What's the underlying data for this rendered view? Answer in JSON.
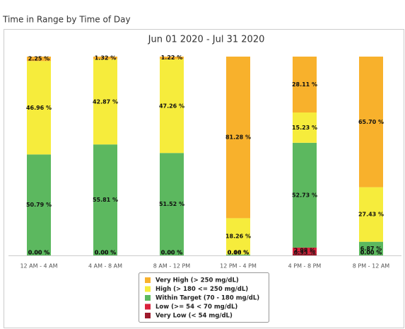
{
  "header": {
    "title": "Time in Range by Time of Day"
  },
  "chart_data": {
    "type": "stacked_bar",
    "title": "Jun 01 2020 - Jul 31 2020",
    "categories": [
      "12 AM - 4 AM",
      "4 AM - 8 AM",
      "8 AM - 12 PM",
      "12 PM - 4 PM",
      "4 PM - 8 PM",
      "8 PM - 12 AM"
    ],
    "ylim": [
      0,
      100
    ],
    "legend": "bottom",
    "series": [
      {
        "name": "Very High (> 250 mg/dL)",
        "color": "#f8b12c",
        "values": [
          2.25,
          1.32,
          1.22,
          81.28,
          28.11,
          65.7
        ],
        "value_labels": [
          "2.25 %",
          "1.32 %",
          "1.22 %",
          "81.28 %",
          "28.11 %",
          "65.70 %"
        ]
      },
      {
        "name": "High (> 180 <= 250 mg/dL)",
        "color": "#f6ec3c",
        "values": [
          46.96,
          42.87,
          47.26,
          18.26,
          15.23,
          27.43
        ],
        "value_labels": [
          "46.96 %",
          "42.87 %",
          "47.26 %",
          "18.26 %",
          "15.23 %",
          "27.43 %"
        ]
      },
      {
        "name": "Within Target (70 - 180 mg/dL)",
        "color": "#5cb85f",
        "values": [
          50.79,
          55.81,
          51.52,
          0.46,
          52.73,
          6.87
        ],
        "value_labels": [
          "50.79 %",
          "55.81 %",
          "51.52 %",
          "0.46 %",
          "52.73 %",
          "6.87 %"
        ]
      },
      {
        "name": "Low (>= 54 < 70 mg/dL)",
        "color": "#d9223b",
        "values": [
          0.0,
          0.0,
          0.0,
          0.0,
          2.98,
          0.0
        ],
        "value_labels": [
          "0.00 %",
          "0.00 %",
          "0.00 %",
          "0.00 %",
          "2.98 %",
          "0.00 %"
        ]
      },
      {
        "name": "Very Low (< 54 mg/dL)",
        "color": "#9e1a2c",
        "values": [
          0.0,
          0.0,
          0.0,
          0.0,
          0.95,
          0.0
        ],
        "value_labels": [
          "0.00 %",
          "0.00 %",
          "0.00 %",
          "0.00 %",
          "0.95 %",
          "0.00 %"
        ]
      }
    ]
  }
}
